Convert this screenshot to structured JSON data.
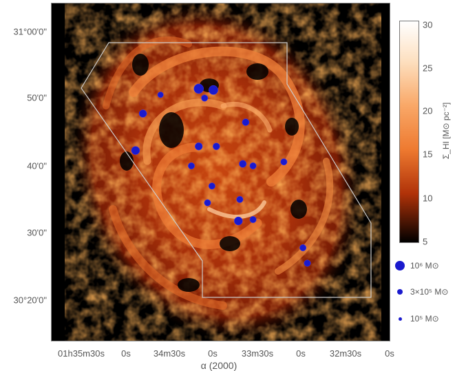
{
  "chart_data": {
    "type": "scatter",
    "title": "",
    "xlabel": "α (2000)",
    "ylabel": "",
    "x_ticks": [
      "01h35m30s",
      "0s",
      "34m30s",
      "0s",
      "33m30s",
      "0s",
      "32m30s",
      "0s"
    ],
    "y_ticks": [
      "31°00'0\"",
      "50'0\"",
      "40'0\"",
      "30'0\"",
      "30°20'0\""
    ],
    "colorbar": {
      "label": "Σ_HI [M⊙ pc⁻²]",
      "ticks": [
        "30",
        "25",
        "20",
        "15",
        "10",
        "5"
      ],
      "range": [
        5,
        31
      ],
      "colormap": "black-red-orange-white"
    },
    "legend": {
      "placement": "bottom-right",
      "items": [
        {
          "label": "10⁶ M⊙",
          "size": "large"
        },
        {
          "label": "3×10⁵ M⊙",
          "size": "medium"
        },
        {
          "label": "10⁵ M⊙",
          "size": "small"
        }
      ]
    },
    "series": [
      {
        "marker_color": "#1a1acd",
        "points": [
          {
            "ra": "01h34m10s",
            "dec": "30°51.5'",
            "mass": 1000000.0
          },
          {
            "ra": "01h34m00s",
            "dec": "30°51.3'",
            "mass": 900000.0
          },
          {
            "ra": "01h34m06s",
            "dec": "30°50.1'",
            "mass": 300000.0
          },
          {
            "ra": "01h34m48s",
            "dec": "30°47.8'",
            "mass": 500000.0
          },
          {
            "ra": "01h34m36s",
            "dec": "30°50.6'",
            "mass": 200000.0
          },
          {
            "ra": "01h34m53s",
            "dec": "30°42.3'",
            "mass": 650000.0
          },
          {
            "ra": "01h34m10s",
            "dec": "30°42.9'",
            "mass": 450000.0
          },
          {
            "ra": "01h33m58s",
            "dec": "30°42.9'",
            "mass": 350000.0
          },
          {
            "ra": "01h33m40s",
            "dec": "30°40.3'",
            "mass": 400000.0
          },
          {
            "ra": "01h33m33s",
            "dec": "30°40.0'",
            "mass": 300000.0
          },
          {
            "ra": "01h33m38s",
            "dec": "30°46.5'",
            "mass": 350000.0
          },
          {
            "ra": "01h33m43s",
            "dec": "30°31.8'",
            "mass": 650000.0
          },
          {
            "ra": "01h33m33s",
            "dec": "30°32.0'",
            "mass": 300000.0
          },
          {
            "ra": "01h33m42s",
            "dec": "30°35.0'",
            "mass": 300000.0
          },
          {
            "ra": "01h33m12s",
            "dec": "30°40.6'",
            "mass": 300000.0
          },
          {
            "ra": "01h32m59s",
            "dec": "30°27.8'",
            "mass": 300000.0
          },
          {
            "ra": "01h32m56s",
            "dec": "30°25.5'",
            "mass": 300000.0
          },
          {
            "ra": "01h34m01s",
            "dec": "30°37.0'",
            "mass": 300000.0
          },
          {
            "ra": "01h34m04s",
            "dec": "30°34.5'",
            "mass": 300000.0
          },
          {
            "ra": "01h34m15s",
            "dec": "30°40.0'",
            "mass": 300000.0
          }
        ]
      }
    ]
  }
}
